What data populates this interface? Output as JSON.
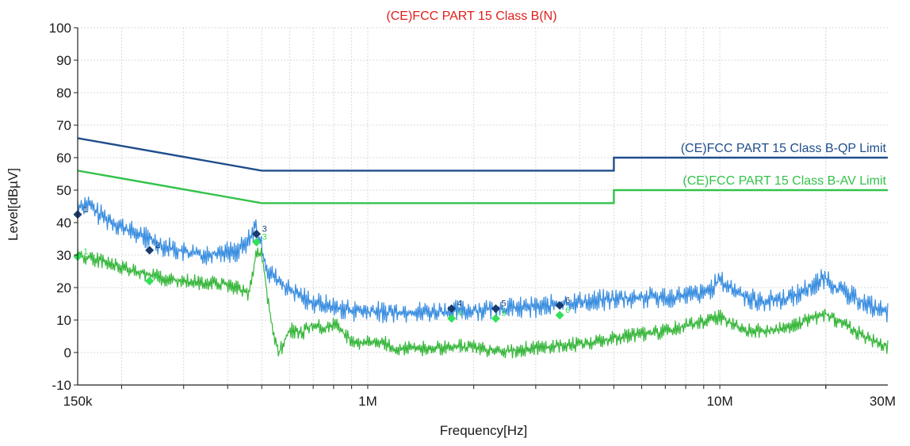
{
  "chart_data": {
    "type": "line",
    "title": "(CE)FCC PART 15 Class B(N)",
    "title_color": "#e0201c",
    "xlabel": "Frequency[Hz]",
    "ylabel": "Level[dBµV]",
    "x_scale": "log",
    "xlim": [
      150000,
      30000000
    ],
    "ylim": [
      -10,
      100
    ],
    "grid": true,
    "y_ticks": [
      100,
      90,
      80,
      70,
      60,
      50,
      40,
      30,
      20,
      10,
      0,
      -10
    ],
    "x_tick_labels": [
      {
        "value": 150000,
        "label": "150k"
      },
      {
        "value": 1000000,
        "label": "1M"
      },
      {
        "value": 10000000,
        "label": "10M"
      },
      {
        "value": 30000000,
        "label": "30M"
      }
    ],
    "limits": [
      {
        "name": "(CE)FCC PART 15 Class B-QP Limit",
        "color": "#1f4e8c",
        "points": [
          [
            150000,
            66
          ],
          [
            500000,
            56
          ],
          [
            5000000,
            56
          ],
          [
            5000000,
            60
          ],
          [
            30000000,
            60
          ]
        ]
      },
      {
        "name": "(CE)FCC PART 15 Class B-AV Limit",
        "color": "#33c24a",
        "points": [
          [
            150000,
            56
          ],
          [
            500000,
            46
          ],
          [
            5000000,
            46
          ],
          [
            5000000,
            50
          ],
          [
            30000000,
            50
          ]
        ]
      }
    ],
    "series": [
      {
        "color": "#3a8ee0",
        "points": [
          [
            150000,
            45
          ],
          [
            160000,
            46
          ],
          [
            170000,
            43
          ],
          [
            190000,
            40
          ],
          [
            210000,
            37.5
          ],
          [
            240000,
            35
          ],
          [
            260000,
            33
          ],
          [
            300000,
            31
          ],
          [
            340000,
            30
          ],
          [
            380000,
            31
          ],
          [
            420000,
            31
          ],
          [
            450000,
            33
          ],
          [
            470000,
            37
          ],
          [
            480000,
            39
          ],
          [
            500000,
            32
          ],
          [
            520000,
            25
          ],
          [
            600000,
            19
          ],
          [
            700000,
            15.5
          ],
          [
            800000,
            14
          ],
          [
            900000,
            13
          ],
          [
            1000000,
            12.5
          ],
          [
            1500000,
            12.5
          ],
          [
            2000000,
            13
          ],
          [
            3000000,
            14
          ],
          [
            4000000,
            15.5
          ],
          [
            5000000,
            16.5
          ],
          [
            7000000,
            17
          ],
          [
            9000000,
            18
          ],
          [
            10000000,
            22
          ],
          [
            11000000,
            19
          ],
          [
            13000000,
            15.5
          ],
          [
            16000000,
            17
          ],
          [
            20000000,
            23
          ],
          [
            22000000,
            19
          ],
          [
            25000000,
            16
          ],
          [
            28000000,
            13.5
          ],
          [
            30000000,
            12
          ]
        ],
        "ripple_amp": 3.5
      },
      {
        "color": "#36b63a",
        "points": [
          [
            150000,
            30
          ],
          [
            180000,
            28
          ],
          [
            220000,
            25
          ],
          [
            260000,
            23
          ],
          [
            300000,
            22
          ],
          [
            350000,
            21.5
          ],
          [
            400000,
            21
          ],
          [
            440000,
            19
          ],
          [
            460000,
            18
          ],
          [
            470000,
            23
          ],
          [
            480000,
            30
          ],
          [
            500000,
            30
          ],
          [
            520000,
            17
          ],
          [
            540000,
            5
          ],
          [
            560000,
            0
          ],
          [
            600000,
            7
          ],
          [
            650000,
            6
          ],
          [
            700000,
            9
          ],
          [
            750000,
            7
          ],
          [
            800000,
            9
          ],
          [
            870000,
            5
          ],
          [
            950000,
            3
          ],
          [
            1000000,
            3
          ],
          [
            1100000,
            3.5
          ],
          [
            1200000,
            0
          ],
          [
            1300000,
            2
          ],
          [
            1500000,
            1
          ],
          [
            1700000,
            2
          ],
          [
            2000000,
            1.5
          ],
          [
            2500000,
            0.5
          ],
          [
            3000000,
            1.5
          ],
          [
            4000000,
            2.5
          ],
          [
            5000000,
            4.5
          ],
          [
            7000000,
            6.5
          ],
          [
            10000000,
            11
          ],
          [
            12000000,
            6.5
          ],
          [
            15000000,
            7
          ],
          [
            20000000,
            12
          ],
          [
            23000000,
            8
          ],
          [
            26000000,
            5
          ],
          [
            28000000,
            3
          ],
          [
            30000000,
            2
          ]
        ],
        "ripple_amp": 2.5
      }
    ],
    "markers": [
      {
        "label": "1",
        "freq": 150000,
        "value": 42.5,
        "type": "QP",
        "color": "#1a3b6e"
      },
      {
        "label": "1",
        "freq": 150000,
        "value": 29.5,
        "type": "AV",
        "color": "#33e05a"
      },
      {
        "label": "2",
        "freq": 240000,
        "value": 31.5,
        "type": "QP",
        "color": "#1a3b6e"
      },
      {
        "label": "2",
        "freq": 240000,
        "value": 22,
        "type": "AV",
        "color": "#33e05a"
      },
      {
        "label": "3",
        "freq": 483000,
        "value": 36.5,
        "type": "QP",
        "color": "#1a3b6e"
      },
      {
        "label": "3",
        "freq": 483000,
        "value": 34,
        "type": "AV",
        "color": "#33e05a"
      },
      {
        "label": "4",
        "freq": 1730000,
        "value": 13.5,
        "type": "QP",
        "color": "#1a3b6e"
      },
      {
        "label": "4",
        "freq": 1730000,
        "value": 10.5,
        "type": "AV",
        "color": "#33e05a"
      },
      {
        "label": "5",
        "freq": 2310000,
        "value": 13.5,
        "type": "QP",
        "color": "#1a3b6e"
      },
      {
        "label": "5",
        "freq": 2310000,
        "value": 10.5,
        "type": "AV",
        "color": "#33e05a"
      },
      {
        "label": "6",
        "freq": 3510000,
        "value": 14.5,
        "type": "QP",
        "color": "#1a3b6e"
      },
      {
        "label": "6",
        "freq": 3510000,
        "value": 11.5,
        "type": "AV",
        "color": "#33e05a"
      }
    ]
  }
}
